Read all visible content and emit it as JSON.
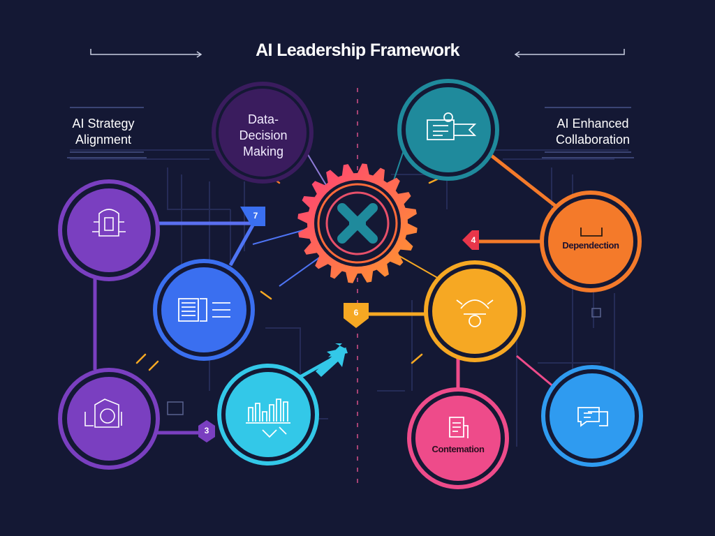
{
  "title": "AI Leadership Framework",
  "labels": {
    "strategy": "AI Strategy Alignment",
    "data_decision": "Data-Decision Making",
    "collaboration": "AI Enhanced Collaboration"
  },
  "nodes": {
    "dependection": "Dependection",
    "contemation": "Contemation"
  },
  "badges": {
    "seven": "7",
    "four": "4",
    "six": "6",
    "three": "3"
  },
  "colors": {
    "background": "#141834",
    "purple": "#7a3fc0",
    "blue": "#3a6ff0",
    "cyan": "#33c8e8",
    "teal": "#1f8a9c",
    "orange": "#f47a2a",
    "yellow": "#f6a823",
    "pink": "#ee4b8a",
    "sky": "#2f9bf0",
    "dark_purple": "#3a1c5e"
  }
}
